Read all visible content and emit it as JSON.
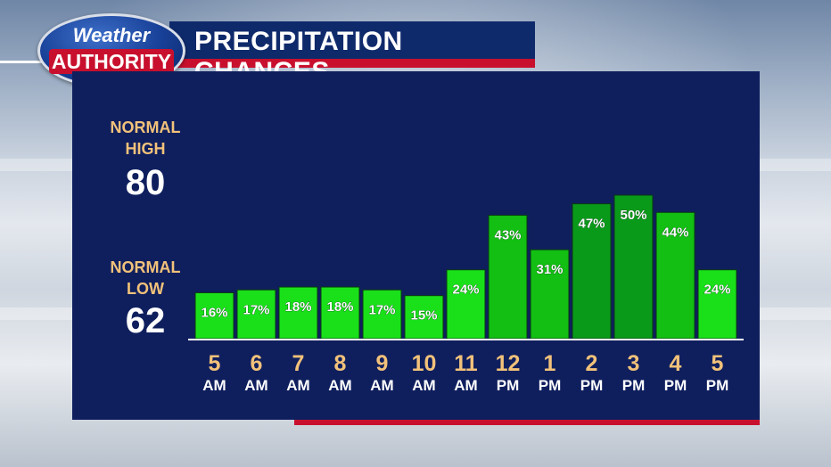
{
  "header": {
    "logo_top": "Weather",
    "logo_bottom": "AUTHORITY",
    "title": "PRECIPITATION CHANCES"
  },
  "normals": {
    "high_label_1": "NORMAL",
    "high_label_2": "HIGH",
    "high_value": "80",
    "low_label_1": "NORMAL",
    "low_label_2": "LOW",
    "low_value": "62"
  },
  "colors": {
    "panel": "#0f1f5e",
    "accent_red": "#c8102e",
    "bar_light": "#19e019",
    "bar_mid": "#12bf12",
    "bar_dark": "#0a9a1a",
    "label_gold": "#f2c27a"
  },
  "chart_data": {
    "type": "bar",
    "categories": [
      "5 AM",
      "6 AM",
      "7 AM",
      "8 AM",
      "9 AM",
      "10 AM",
      "11 AM",
      "12 PM",
      "1 PM",
      "2 PM",
      "3 PM",
      "4 PM",
      "5 PM"
    ],
    "hours": [
      "5",
      "6",
      "7",
      "8",
      "9",
      "10",
      "11",
      "12",
      "1",
      "2",
      "3",
      "4",
      "5"
    ],
    "periods": [
      "AM",
      "AM",
      "AM",
      "AM",
      "AM",
      "AM",
      "AM",
      "PM",
      "PM",
      "PM",
      "PM",
      "PM",
      "PM"
    ],
    "values": [
      16,
      17,
      18,
      18,
      17,
      15,
      24,
      43,
      31,
      47,
      50,
      44,
      24
    ],
    "labels": [
      "16%",
      "17%",
      "18%",
      "18%",
      "17%",
      "15%",
      "24%",
      "43%",
      "31%",
      "47%",
      "50%",
      "44%",
      "24%"
    ],
    "title": "PRECIPITATION CHANCES",
    "xlabel": "",
    "ylabel": "",
    "unit": "%"
  }
}
